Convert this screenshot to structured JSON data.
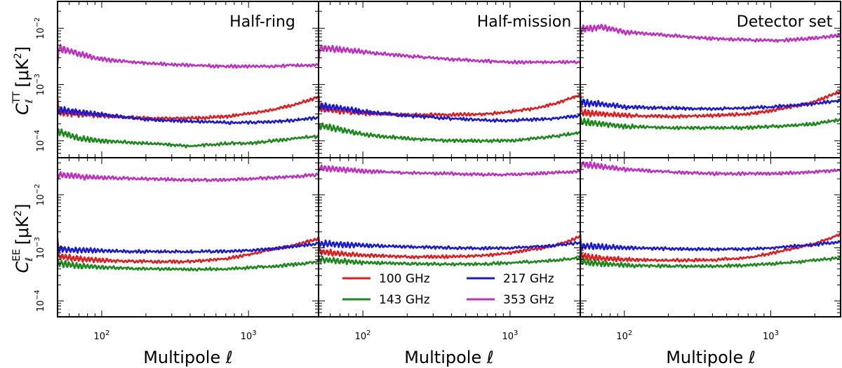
{
  "figure": {
    "ylabel_top_main": "C",
    "ylabel_top_sub": "ℓ",
    "ylabel_top_sup": "TT",
    "ylabel_top_unit": "[μK",
    "ylabel_top_unit_sup": "2",
    "ylabel_top_close": "]",
    "ylabel_bottom_main": "C",
    "ylabel_bottom_sub": "ℓ",
    "ylabel_bottom_sup": "EE",
    "ylabel_bottom_unit": "[μK",
    "ylabel_bottom_unit_sup": "2",
    "ylabel_bottom_close": "]",
    "xlabel": "Multipole ℓ",
    "x_tick_base": "10",
    "x_tick_exponents": [
      "2",
      "3"
    ],
    "y_tick_base": "10",
    "y_tick_exponents_top": [
      "−2",
      "−3",
      "−4"
    ],
    "y_tick_exponents_bottom": [
      "−2",
      "−3",
      "−4"
    ]
  },
  "legend": {
    "items": [
      {
        "label": "100 GHz",
        "color": "#e41a1c"
      },
      {
        "label": "143 GHz",
        "color": "#1b8a1b"
      },
      {
        "label": "217 GHz",
        "color": "#1a1ad6"
      },
      {
        "label": "353 GHz",
        "color": "#c030c0"
      }
    ]
  },
  "chart_data": {
    "type": "line",
    "x_scale": "log",
    "y_scale": "log",
    "xlim": [
      50,
      3000
    ],
    "ylim_top": [
      5e-05,
      0.03
    ],
    "ylim_bottom": [
      5e-05,
      0.05
    ],
    "x_ticks": [
      100,
      1000
    ],
    "y_ticks_top": [
      0.01,
      0.001,
      0.0001
    ],
    "y_ticks_bottom": [
      0.01,
      0.001,
      0.0001
    ],
    "columns": [
      "Half-ring",
      "Half-mission",
      "Detector set"
    ],
    "rows": [
      "TT",
      "EE"
    ],
    "x": [
      50,
      70,
      100,
      200,
      400,
      700,
      1000,
      1500,
      2000,
      3000
    ],
    "panels": [
      {
        "row": "TT",
        "column": "Half-ring",
        "title": "Half-ring",
        "series": [
          {
            "name": "100 GHz",
            "color": "#e41a1c",
            "values": [
              0.00032,
              0.0003,
              0.00028,
              0.00025,
              0.00025,
              0.00027,
              0.0003,
              0.00036,
              0.00043,
              0.0006
            ]
          },
          {
            "name": "143 GHz",
            "color": "#1b8a1b",
            "values": [
              0.00015,
              0.00011,
              0.0001,
              9e-05,
              8e-05,
              9e-05,
              9e-05,
              0.0001,
              0.00011,
              0.00012
            ]
          },
          {
            "name": "217 GHz",
            "color": "#1a1ad6",
            "values": [
              0.00036,
              0.00032,
              0.00029,
              0.00024,
              0.00022,
              0.00021,
              0.00021,
              0.00022,
              0.00023,
              0.00026
            ]
          },
          {
            "name": "353 GHz",
            "color": "#c030c0",
            "values": [
              0.0045,
              0.0035,
              0.0028,
              0.0024,
              0.0022,
              0.0021,
              0.0021,
              0.0021,
              0.0022,
              0.0022
            ]
          }
        ]
      },
      {
        "row": "TT",
        "column": "Half-mission",
        "title": "Half-mission",
        "series": [
          {
            "name": "100 GHz",
            "color": "#e41a1c",
            "values": [
              0.00038,
              0.00034,
              0.00031,
              0.00029,
              0.00029,
              0.0003,
              0.00033,
              0.00038,
              0.00045,
              0.00065
            ]
          },
          {
            "name": "143 GHz",
            "color": "#1b8a1b",
            "values": [
              0.00019,
              0.00016,
              0.00013,
              0.00011,
              0.0001,
              0.0001,
              0.0001,
              0.00011,
              0.00012,
              0.00014
            ]
          },
          {
            "name": "217 GHz",
            "color": "#1a1ad6",
            "values": [
              0.00042,
              0.00038,
              0.00033,
              0.00028,
              0.00025,
              0.00023,
              0.00023,
              0.00024,
              0.00025,
              0.00028
            ]
          },
          {
            "name": "353 GHz",
            "color": "#c030c0",
            "values": [
              0.0045,
              0.0042,
              0.0038,
              0.0032,
              0.0028,
              0.0026,
              0.0025,
              0.0025,
              0.0025,
              0.0025
            ]
          }
        ]
      },
      {
        "row": "TT",
        "column": "Detector set",
        "title": "Detector set",
        "series": [
          {
            "name": "100 GHz",
            "color": "#e41a1c",
            "values": [
              0.00032,
              0.0003,
              0.00028,
              0.00027,
              0.00028,
              0.0003,
              0.00034,
              0.00042,
              0.0005,
              0.00075
            ]
          },
          {
            "name": "143 GHz",
            "color": "#1b8a1b",
            "values": [
              0.00022,
              0.0002,
              0.00018,
              0.00017,
              0.00017,
              0.00017,
              0.00018,
              0.00019,
              0.0002,
              0.00024
            ]
          },
          {
            "name": "217 GHz",
            "color": "#1a1ad6",
            "values": [
              0.00048,
              0.00045,
              0.0004,
              0.00038,
              0.00037,
              0.00038,
              0.0004,
              0.00043,
              0.00046,
              0.00052
            ]
          },
          {
            "name": "353 GHz",
            "color": "#c030c0",
            "values": [
              0.0095,
              0.0105,
              0.0085,
              0.0075,
              0.0065,
              0.0062,
              0.006,
              0.0063,
              0.0067,
              0.0075
            ]
          }
        ]
      },
      {
        "row": "EE",
        "column": "Half-ring",
        "title": "",
        "series": [
          {
            "name": "100 GHz",
            "color": "#e41a1c",
            "values": [
              0.0007,
              0.00062,
              0.00058,
              0.00055,
              0.00055,
              0.00062,
              0.00075,
              0.00095,
              0.0011,
              0.0015
            ]
          },
          {
            "name": "143 GHz",
            "color": "#1b8a1b",
            "values": [
              0.00052,
              0.00046,
              0.00043,
              0.0004,
              0.00039,
              0.0004,
              0.00042,
              0.00045,
              0.00048,
              0.00055
            ]
          },
          {
            "name": "217 GHz",
            "color": "#1a1ad6",
            "values": [
              0.00095,
              0.0009,
              0.00088,
              0.00085,
              0.00084,
              0.00086,
              0.0009,
              0.00097,
              0.00105,
              0.0012
            ]
          },
          {
            "name": "353 GHz",
            "color": "#c030c0",
            "values": [
              0.024,
              0.022,
              0.021,
              0.02,
              0.019,
              0.019,
              0.02,
              0.021,
              0.022,
              0.024
            ]
          }
        ]
      },
      {
        "row": "EE",
        "column": "Half-mission",
        "title": "",
        "series": [
          {
            "name": "100 GHz",
            "color": "#e41a1c",
            "values": [
              0.00085,
              0.00078,
              0.00072,
              0.00068,
              0.00068,
              0.00072,
              0.0008,
              0.00095,
              0.0011,
              0.0016
            ]
          },
          {
            "name": "143 GHz",
            "color": "#1b8a1b",
            "values": [
              0.0006,
              0.00056,
              0.00053,
              0.0005,
              0.00049,
              0.0005,
              0.00052,
              0.00055,
              0.00058,
              0.00065
            ]
          },
          {
            "name": "217 GHz",
            "color": "#1a1ad6",
            "values": [
              0.0012,
              0.00115,
              0.0011,
              0.00105,
              0.001,
              0.00098,
              0.001,
              0.00105,
              0.0011,
              0.00125
            ]
          },
          {
            "name": "353 GHz",
            "color": "#c030c0",
            "values": [
              0.032,
              0.03,
              0.028,
              0.026,
              0.025,
              0.024,
              0.024,
              0.025,
              0.026,
              0.028
            ]
          }
        ]
      },
      {
        "row": "EE",
        "column": "Detector set",
        "title": "",
        "series": [
          {
            "name": "100 GHz",
            "color": "#e41a1c",
            "values": [
              0.0007,
              0.00063,
              0.0006,
              0.00058,
              0.00059,
              0.00065,
              0.00078,
              0.001,
              0.0012,
              0.0018
            ]
          },
          {
            "name": "143 GHz",
            "color": "#1b8a1b",
            "values": [
              0.00055,
              0.0005,
              0.00047,
              0.00045,
              0.00045,
              0.00047,
              0.0005,
              0.00054,
              0.00058,
              0.00065
            ]
          },
          {
            "name": "217 GHz",
            "color": "#1a1ad6",
            "values": [
              0.0011,
              0.00105,
              0.001,
              0.00096,
              0.00094,
              0.00095,
              0.001,
              0.00108,
              0.00115,
              0.0013
            ]
          },
          {
            "name": "353 GHz",
            "color": "#c030c0",
            "values": [
              0.038,
              0.034,
              0.03,
              0.027,
              0.025,
              0.025,
              0.025,
              0.026,
              0.027,
              0.029
            ]
          }
        ]
      }
    ]
  }
}
